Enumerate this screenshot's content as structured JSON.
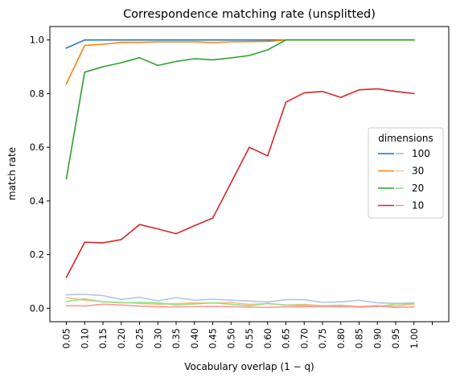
{
  "chart_data": {
    "type": "line",
    "title": "Correspondence matching rate (unsplitted)",
    "xlabel": "Vocabulary overlap (1 − q)",
    "ylabel": "match rate",
    "x": [
      "0.05",
      "0.10",
      "0.15",
      "0.20",
      "0.25",
      "0.30",
      "0.35",
      "0.40",
      "0.45",
      "0.50",
      "0.55",
      "0.60",
      "0.65",
      "0.70",
      "0.75",
      "0.80",
      "0.85",
      "0.90",
      "0.95",
      "1.00"
    ],
    "yticks": [
      "0.0",
      "0.2",
      "0.4",
      "0.6",
      "0.8",
      "1.0"
    ],
    "ylim": [
      -0.05,
      1.05
    ],
    "legend": {
      "title": "dimensions",
      "position": "center-right"
    },
    "series": [
      {
        "name": "100",
        "color": "#1f77b4",
        "values": [
          0.97,
          1.0,
          1.0,
          1.0,
          1.0,
          1.0,
          1.0,
          1.0,
          1.0,
          1.0,
          1.0,
          1.0,
          1.0,
          1.0,
          1.0,
          1.0,
          1.0,
          1.0,
          1.0,
          1.0
        ]
      },
      {
        "name": "30",
        "color": "#ff7f0e",
        "values": [
          0.836,
          0.98,
          0.984,
          0.991,
          0.991,
          0.993,
          0.993,
          0.993,
          0.99,
          0.993,
          0.994,
          0.995,
          1.0,
          1.0,
          1.0,
          1.0,
          1.0,
          1.0,
          1.0,
          1.0
        ]
      },
      {
        "name": "20",
        "color": "#2ca02c",
        "values": [
          0.483,
          0.88,
          0.9,
          0.915,
          0.934,
          0.905,
          0.92,
          0.93,
          0.926,
          0.933,
          0.942,
          0.963,
          1.0,
          1.0,
          1.0,
          1.0,
          1.0,
          1.0,
          1.0,
          1.0
        ]
      },
      {
        "name": "10",
        "color": "#d62728",
        "values": [
          0.115,
          0.246,
          0.244,
          0.256,
          0.312,
          0.296,
          0.278,
          0.308,
          0.336,
          0.468,
          0.6,
          0.568,
          0.768,
          0.803,
          0.808,
          0.786,
          0.814,
          0.818,
          0.808,
          0.8
        ]
      },
      {
        "name": "",
        "color": "#aec7e8",
        "values": [
          0.05,
          0.052,
          0.047,
          0.033,
          0.041,
          0.028,
          0.04,
          0.03,
          0.034,
          0.03,
          0.027,
          0.023,
          0.032,
          0.032,
          0.022,
          0.024,
          0.03,
          0.02,
          0.018,
          0.02
        ]
      },
      {
        "name": "",
        "color": "#ffbb78",
        "values": [
          0.04,
          0.03,
          0.025,
          0.022,
          0.018,
          0.015,
          0.017,
          0.02,
          0.019,
          0.022,
          0.014,
          0.017,
          0.012,
          0.014,
          0.01,
          0.011,
          0.007,
          0.01,
          0.008,
          0.016
        ]
      },
      {
        "name": "",
        "color": "#98df8a",
        "values": [
          0.025,
          0.035,
          0.024,
          0.02,
          0.022,
          0.02,
          0.013,
          0.016,
          0.02,
          0.015,
          0.009,
          0.018,
          0.012,
          0.01,
          0.009,
          0.009,
          0.004,
          0.006,
          0.016,
          0.018
        ]
      },
      {
        "name": "",
        "color": "#ff9896",
        "values": [
          0.01,
          0.008,
          0.015,
          0.012,
          0.008,
          0.005,
          0.005,
          0.006,
          0.007,
          0.006,
          0.004,
          0.004,
          0.005,
          0.006,
          0.006,
          0.005,
          0.006,
          0.008,
          0.003,
          0.005
        ]
      }
    ]
  }
}
